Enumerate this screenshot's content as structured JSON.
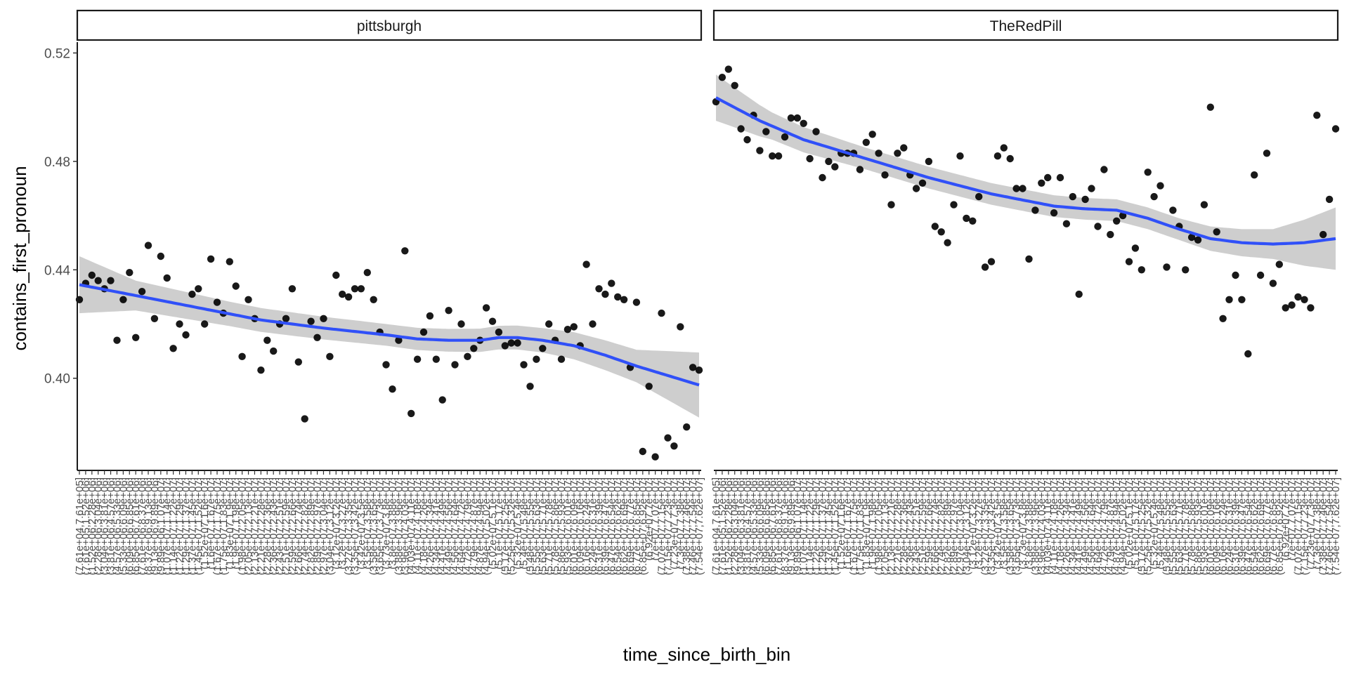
{
  "chart_data": {
    "type": "scatter",
    "xlabel": "time_since_birth_bin",
    "ylabel": "contains_first_pronoun",
    "ylim": [
      0.366,
      0.524
    ],
    "yticks": [
      0.4,
      0.44,
      0.48,
      0.52
    ],
    "ytick_labels": [
      "0.40",
      "0.44",
      "0.48",
      "0.52"
    ],
    "grid": false,
    "legend": "none",
    "point_color": "#000000",
    "smooth_color": "#3050F8",
    "band_color": "#c6c6c6",
    "n_categories": 100,
    "x_tick_labels": [
      "(7.61e+04,7.61e+05]",
      "(7.61e+05,1.52e+06]",
      "(1.52e+06,2.28e+06]",
      "(2.28e+06,3.04e+06]",
      "(3.04e+06,3.81e+06]",
      "(3.81e+06,4.57e+06]",
      "(4.57e+06,5.33e+06]",
      "(5.33e+06,6.09e+06]",
      "(6.09e+06,6.85e+06]",
      "(6.85e+06,7.61e+06]",
      "(7.61e+06,8.37e+06]",
      "(8.37e+06,9.13e+06]",
      "(9.13e+06,9.89e+06]",
      "(9.89e+06,1.07e+07]",
      "(1.07e+07,1.14e+07]",
      "(1.14e+07,1.22e+07]",
      "(1.22e+07,1.29e+07]",
      "(1.29e+07,1.37e+07]",
      "(1.37e+07,1.45e+07]",
      "(1.45e+07,1.52e+07]",
      "(1.52e+07,1.6e+07]",
      "(1.6e+07,1.67e+07]",
      "(1.67e+07,1.75e+07]",
      "(1.75e+07,1.83e+07]",
      "(1.83e+07,1.9e+07]",
      "(1.9e+07,1.98e+07]",
      "(1.98e+07,2.05e+07]",
      "(2.05e+07,2.13e+07]",
      "(2.13e+07,2.21e+07]",
      "(2.21e+07,2.28e+07]",
      "(2.28e+07,2.36e+07]",
      "(2.36e+07,2.43e+07]",
      "(2.43e+07,2.51e+07]",
      "(2.51e+07,2.59e+07]",
      "(2.59e+07,2.66e+07]",
      "(2.66e+07,2.74e+07]",
      "(2.74e+07,2.82e+07]",
      "(2.82e+07,2.89e+07]",
      "(2.89e+07,2.97e+07]",
      "(2.97e+07,3.04e+07]",
      "(3.04e+07,3.12e+07]",
      "(3.12e+07,3.2e+07]",
      "(3.2e+07,3.27e+07]",
      "(3.27e+07,3.35e+07]",
      "(3.35e+07,3.42e+07]",
      "(3.42e+07,3.5e+07]",
      "(3.5e+07,3.58e+07]",
      "(3.58e+07,3.65e+07]",
      "(3.65e+07,3.73e+07]",
      "(3.73e+07,3.8e+07]",
      "(3.8e+07,3.88e+07]",
      "(3.88e+07,3.96e+07]",
      "(3.96e+07,4.03e+07]",
      "(4.03e+07,4.11e+07]",
      "(4.11e+07,4.18e+07]",
      "(4.18e+07,4.26e+07]",
      "(4.26e+07,4.34e+07]",
      "(4.34e+07,4.41e+07]",
      "(4.41e+07,4.49e+07]",
      "(4.49e+07,4.56e+07]",
      "(4.56e+07,4.64e+07]",
      "(4.64e+07,4.72e+07]",
      "(4.72e+07,4.79e+07]",
      "(4.79e+07,4.87e+07]",
      "(4.87e+07,4.94e+07]",
      "(4.94e+07,5.02e+07]",
      "(5.02e+07,5.1e+07]",
      "(5.1e+07,5.17e+07]",
      "(5.17e+07,5.25e+07]",
      "(5.25e+07,5.32e+07]",
      "(5.32e+07,5.4e+07]",
      "(5.4e+07,5.48e+07]",
      "(5.48e+07,5.55e+07]",
      "(5.55e+07,5.63e+07]",
      "(5.63e+07,5.71e+07]",
      "(5.71e+07,5.78e+07]",
      "(5.78e+07,5.86e+07]",
      "(5.86e+07,5.93e+07]",
      "(5.93e+07,6.01e+07]",
      "(6.01e+07,6.09e+07]",
      "(6.09e+07,6.16e+07]",
      "(6.16e+07,6.24e+07]",
      "(6.24e+07,6.31e+07]",
      "(6.31e+07,6.39e+07]",
      "(6.39e+07,6.47e+07]",
      "(6.47e+07,6.54e+07]",
      "(6.54e+07,6.62e+07]",
      "(6.62e+07,6.69e+07]",
      "(6.69e+07,6.77e+07]",
      "(6.77e+07,6.85e+07]",
      "(6.85e+07,6.92e+07]",
      "(6.92e+07,7e+07]",
      "(7e+07,7.07e+07]",
      "(7.07e+07,7.15e+07]",
      "(7.15e+07,7.23e+07]",
      "(7.23e+07,7.3e+07]",
      "(7.3e+07,7.38e+07]",
      "(7.38e+07,7.46e+07]",
      "(7.46e+07,7.54e+07]",
      "(7.54e+07,7.62e+07]"
    ],
    "panels": [
      {
        "name": "pittsburgh",
        "points": [
          0.429,
          0.435,
          0.438,
          0.436,
          0.433,
          0.436,
          0.414,
          0.429,
          0.439,
          0.415,
          0.432,
          0.449,
          0.422,
          0.445,
          0.437,
          0.411,
          0.42,
          0.416,
          0.431,
          0.433,
          0.42,
          0.444,
          0.428,
          0.424,
          0.443,
          0.434,
          0.408,
          0.429,
          0.422,
          0.403,
          0.414,
          0.41,
          0.42,
          0.422,
          0.433,
          0.406,
          0.385,
          0.421,
          0.415,
          0.422,
          0.408,
          0.438,
          0.431,
          0.43,
          0.433,
          0.433,
          0.439,
          0.429,
          0.417,
          0.405,
          0.396,
          0.414,
          0.447,
          0.387,
          0.407,
          0.417,
          0.423,
          0.407,
          0.392,
          0.425,
          0.405,
          0.42,
          0.408,
          0.411,
          0.414,
          0.426,
          0.421,
          0.417,
          0.412,
          0.413,
          0.413,
          0.405,
          0.397,
          0.407,
          0.411,
          0.42,
          0.414,
          0.407,
          0.418,
          0.419,
          0.412,
          0.442,
          0.42,
          0.433,
          0.431,
          0.435,
          0.43,
          0.429,
          0.404,
          0.428,
          0.373,
          0.397,
          0.371,
          0.424,
          0.378,
          0.375,
          0.419,
          0.382,
          0.404,
          0.403
        ],
        "smooth": [
          [
            1,
            0.4345
          ],
          [
            10,
            0.4305
          ],
          [
            20,
            0.426
          ],
          [
            30,
            0.4215
          ],
          [
            40,
            0.4185
          ],
          [
            50,
            0.416
          ],
          [
            55,
            0.4145
          ],
          [
            60,
            0.414
          ],
          [
            65,
            0.414
          ],
          [
            68,
            0.415
          ],
          [
            71,
            0.415
          ],
          [
            75,
            0.414
          ],
          [
            80,
            0.412
          ],
          [
            85,
            0.4085
          ],
          [
            90,
            0.4045
          ],
          [
            95,
            0.401
          ],
          [
            100,
            0.3975
          ]
        ],
        "band_half_width": [
          [
            1,
            0.0105
          ],
          [
            10,
            0.0055
          ],
          [
            25,
            0.0045
          ],
          [
            50,
            0.004
          ],
          [
            75,
            0.0045
          ],
          [
            90,
            0.006
          ],
          [
            100,
            0.012
          ]
        ]
      },
      {
        "name": "TheRedPill",
        "points": [
          0.502,
          0.511,
          0.514,
          0.508,
          0.492,
          0.488,
          0.497,
          0.484,
          0.491,
          0.482,
          0.482,
          0.489,
          0.496,
          0.496,
          0.494,
          0.481,
          0.491,
          0.474,
          0.48,
          0.478,
          0.483,
          0.483,
          0.483,
          0.477,
          0.487,
          0.49,
          0.483,
          0.475,
          0.464,
          0.483,
          0.485,
          0.475,
          0.47,
          0.472,
          0.48,
          0.456,
          0.454,
          0.45,
          0.464,
          0.482,
          0.459,
          0.458,
          0.467,
          0.441,
          0.443,
          0.482,
          0.485,
          0.481,
          0.47,
          0.47,
          0.444,
          0.462,
          0.472,
          0.474,
          0.461,
          0.474,
          0.457,
          0.467,
          0.431,
          0.466,
          0.47,
          0.456,
          0.477,
          0.453,
          0.458,
          0.46,
          0.443,
          0.448,
          0.44,
          0.476,
          0.467,
          0.471,
          0.441,
          0.462,
          0.456,
          0.44,
          0.452,
          0.451,
          0.464,
          0.5,
          0.454,
          0.422,
          0.429,
          0.438,
          0.429,
          0.409,
          0.475,
          0.438,
          0.483,
          0.435,
          0.442,
          0.426,
          0.427,
          0.43,
          0.429,
          0.426,
          0.497,
          0.453,
          0.466,
          0.492
        ],
        "smooth": [
          [
            1,
            0.5035
          ],
          [
            8,
            0.495
          ],
          [
            15,
            0.488
          ],
          [
            25,
            0.481
          ],
          [
            35,
            0.474
          ],
          [
            45,
            0.468
          ],
          [
            55,
            0.4635
          ],
          [
            60,
            0.4625
          ],
          [
            65,
            0.462
          ],
          [
            70,
            0.459
          ],
          [
            75,
            0.455
          ],
          [
            80,
            0.4515
          ],
          [
            85,
            0.45
          ],
          [
            90,
            0.4495
          ],
          [
            95,
            0.45
          ],
          [
            100,
            0.4515
          ]
        ],
        "band_half_width": [
          [
            1,
            0.0085
          ],
          [
            10,
            0.005
          ],
          [
            25,
            0.004
          ],
          [
            50,
            0.004
          ],
          [
            75,
            0.004
          ],
          [
            90,
            0.0055
          ],
          [
            100,
            0.0115
          ]
        ]
      }
    ]
  }
}
